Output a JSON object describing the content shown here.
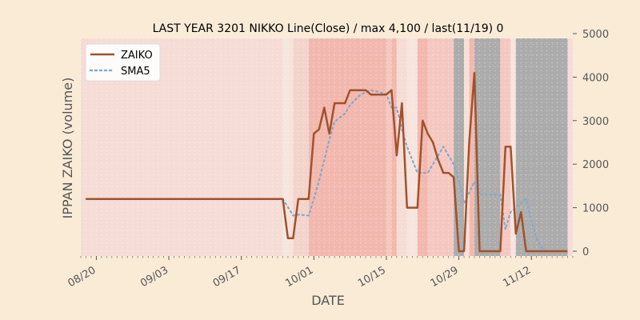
{
  "chart_data": {
    "type": "line",
    "title": "LAST YEAR 3201 NIKKO Line(Close) / max 4,100 / last(11/19) 0",
    "xlabel": "DATE",
    "ylabel": "IPPAN ZAIKO (volume)",
    "ylim": [
      0,
      5000
    ],
    "yticks": [
      "0",
      "1000",
      "2000",
      "3000",
      "4000",
      "5000"
    ],
    "y_axis_side": "right",
    "xlim": [
      "2023-08-17",
      "2023-11-20"
    ],
    "xticks": [
      {
        "date": "2023-08-20",
        "label": "08/20"
      },
      {
        "date": "2023-09-03",
        "label": "09/03"
      },
      {
        "date": "2023-09-17",
        "label": "09/17"
      },
      {
        "date": "2023-10-01",
        "label": "10/01"
      },
      {
        "date": "2023-10-15",
        "label": "10/15"
      },
      {
        "date": "2023-10-29",
        "label": "10/29"
      },
      {
        "date": "2023-11-12",
        "label": "11/12"
      }
    ],
    "legend_position": "top-left",
    "grid": true,
    "colors": {
      "ZAIKO": "#a0522d",
      "SMA5": "#87a9c8",
      "background": "#faebd7"
    },
    "series": [
      {
        "name": "ZAIKO",
        "style": "solid",
        "points": [
          [
            "2023-08-18",
            1200
          ],
          [
            "2023-09-25",
            1200
          ],
          [
            "2023-09-26",
            300
          ],
          [
            "2023-09-27",
            300
          ],
          [
            "2023-09-28",
            1200
          ],
          [
            "2023-09-30",
            1200
          ],
          [
            "2023-10-01",
            2700
          ],
          [
            "2023-10-02",
            2800
          ],
          [
            "2023-10-03",
            3300
          ],
          [
            "2023-10-04",
            2700
          ],
          [
            "2023-10-05",
            3400
          ],
          [
            "2023-10-07",
            3400
          ],
          [
            "2023-10-08",
            3700
          ],
          [
            "2023-10-11",
            3700
          ],
          [
            "2023-10-12",
            3600
          ],
          [
            "2023-10-15",
            3600
          ],
          [
            "2023-10-16",
            3700
          ],
          [
            "2023-10-17",
            2200
          ],
          [
            "2023-10-18",
            3400
          ],
          [
            "2023-10-19",
            1000
          ],
          [
            "2023-10-21",
            1000
          ],
          [
            "2023-10-22",
            3000
          ],
          [
            "2023-10-23",
            2700
          ],
          [
            "2023-10-24",
            2500
          ],
          [
            "2023-10-25",
            2100
          ],
          [
            "2023-10-26",
            1800
          ],
          [
            "2023-10-27",
            1800
          ],
          [
            "2023-10-28",
            1700
          ],
          [
            "2023-10-29",
            0
          ],
          [
            "2023-10-30",
            0
          ],
          [
            "2023-10-31",
            2500
          ],
          [
            "2023-11-01",
            4100
          ],
          [
            "2023-11-02",
            0
          ],
          [
            "2023-11-06",
            0
          ],
          [
            "2023-11-07",
            2400
          ],
          [
            "2023-11-08",
            2400
          ],
          [
            "2023-11-09",
            400
          ],
          [
            "2023-11-10",
            900
          ],
          [
            "2023-11-11",
            0
          ],
          [
            "2023-11-19",
            0
          ]
        ]
      },
      {
        "name": "SMA5",
        "style": "dotted",
        "points": [
          [
            "2023-08-18",
            1200
          ],
          [
            "2023-09-25",
            1200
          ],
          [
            "2023-09-27",
            820
          ],
          [
            "2023-09-28",
            840
          ],
          [
            "2023-09-30",
            820
          ],
          [
            "2023-10-01",
            1200
          ],
          [
            "2023-10-02",
            1620
          ],
          [
            "2023-10-03",
            2100
          ],
          [
            "2023-10-04",
            2560
          ],
          [
            "2023-10-05",
            2980
          ],
          [
            "2023-10-07",
            3160
          ],
          [
            "2023-10-08",
            3360
          ],
          [
            "2023-10-10",
            3600
          ],
          [
            "2023-10-12",
            3700
          ],
          [
            "2023-10-15",
            3620
          ],
          [
            "2023-10-16",
            3300
          ],
          [
            "2023-10-17",
            3300
          ],
          [
            "2023-10-18",
            2800
          ],
          [
            "2023-10-19",
            2400
          ],
          [
            "2023-10-21",
            1800
          ],
          [
            "2023-10-22",
            1800
          ],
          [
            "2023-10-23",
            1800
          ],
          [
            "2023-10-25",
            2200
          ],
          [
            "2023-10-26",
            2400
          ],
          [
            "2023-10-27",
            2200
          ],
          [
            "2023-10-28",
            2000
          ],
          [
            "2023-10-29",
            1620
          ],
          [
            "2023-10-30",
            1100
          ],
          [
            "2023-11-01",
            1600
          ],
          [
            "2023-11-02",
            1300
          ],
          [
            "2023-11-05",
            1300
          ],
          [
            "2023-11-06",
            1300
          ],
          [
            "2023-11-07",
            500
          ],
          [
            "2023-11-08",
            900
          ],
          [
            "2023-11-10",
            1100
          ],
          [
            "2023-11-11",
            1200
          ],
          [
            "2023-11-12",
            700
          ],
          [
            "2023-11-13",
            300
          ],
          [
            "2023-11-14",
            80
          ],
          [
            "2023-11-15",
            0
          ],
          [
            "2023-11-19",
            0
          ]
        ]
      }
    ],
    "background_bands": [
      {
        "start": "2023-09-25",
        "end": "2023-09-26",
        "color": "#f1e8e0"
      },
      {
        "start": "2023-09-26",
        "end": "2023-09-27",
        "color": "#f8e2da"
      },
      {
        "start": "2023-09-27",
        "end": "2023-09-30",
        "color": "#f3d4cc"
      },
      {
        "start": "2023-09-30",
        "end": "2023-10-15",
        "color": "#f2b8ae"
      },
      {
        "start": "2023-10-15",
        "end": "2023-10-16",
        "color": "#f4c8c0"
      },
      {
        "start": "2023-10-16",
        "end": "2023-10-17",
        "color": "#f2b8ae"
      },
      {
        "start": "2023-10-17",
        "end": "2023-10-19",
        "color": "#f5ddd6"
      },
      {
        "start": "2023-10-19",
        "end": "2023-10-21",
        "color": "#f7e4de"
      },
      {
        "start": "2023-10-21",
        "end": "2023-10-23",
        "color": "#f2b8ae"
      },
      {
        "start": "2023-10-23",
        "end": "2023-10-28",
        "color": "#f4c8c0"
      },
      {
        "start": "2023-10-28",
        "end": "2023-10-30",
        "color": "#acacac"
      },
      {
        "start": "2023-10-30",
        "end": "2023-10-31",
        "color": "#f6e0da"
      },
      {
        "start": "2023-10-31",
        "end": "2023-11-01",
        "color": "#f2b8ae"
      },
      {
        "start": "2023-11-01",
        "end": "2023-11-06",
        "color": "#acacac"
      },
      {
        "start": "2023-11-06",
        "end": "2023-11-08",
        "color": "#f4c8c0"
      },
      {
        "start": "2023-11-08",
        "end": "2023-11-09",
        "color": "#f7e4de"
      },
      {
        "start": "2023-11-09",
        "end": "2023-11-19",
        "color": "#acacac"
      }
    ],
    "base_band_color": "#f6dcd6"
  }
}
